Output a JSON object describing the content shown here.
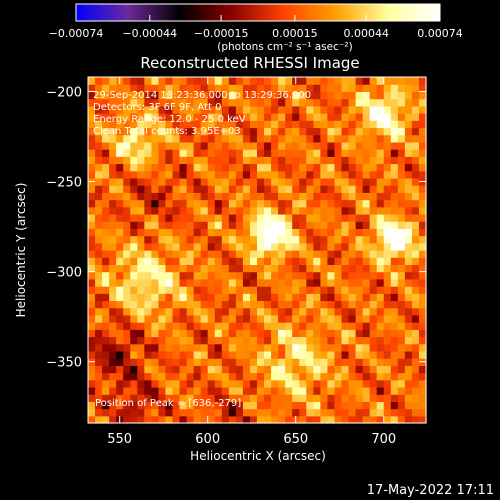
{
  "chart_data": {
    "type": "heatmap",
    "title": "Reconstructed RHESSI Image",
    "xlabel": "Heliocentric X (arcsec)",
    "ylabel": "Heliocentric Y (arcsec)",
    "xlim": [
      532,
      724
    ],
    "ylim": [
      -384,
      -192
    ],
    "x_ticks": [
      550,
      600,
      650,
      700
    ],
    "x_tick_labels": [
      "550",
      "600",
      "650",
      "700"
    ],
    "y_ticks": [
      -200,
      -250,
      -300,
      -350
    ],
    "y_tick_labels": [
      "−200",
      "−250",
      "−300",
      "−350"
    ],
    "colorbar": {
      "range": [
        -0.00074,
        0.00074
      ],
      "ticks": [
        -0.00074,
        -0.00044,
        -0.00015,
        0.00015,
        0.00044,
        0.00074
      ],
      "tick_labels": [
        "−0.00074",
        "−0.00044",
        "−0.00015",
        "0.00015",
        "0.00044",
        "0.00074"
      ],
      "units_label": "(photons cm⁻² s⁻¹ asec⁻²)",
      "colors": [
        "#0000ff",
        "#6a2a9a",
        "#000000",
        "#8a0000",
        "#ff4400",
        "#ffa000",
        "#ffffa0",
        "#ffffff"
      ]
    },
    "annotations": [
      "29-Sep-2014 13:23:36.000 to 13:29:36.000",
      "Detectors: 3F 6F 9F, Att 0",
      "Energy Range: 12.0 - 25.0 keV",
      "Clean     Total counts: 3.95E+03"
    ],
    "peak_label": "Position of Peak = [636,-279]",
    "peak": [
      636,
      -279
    ],
    "sources": [
      {
        "x": 636,
        "y": -279,
        "amp": 1.0,
        "sigma": 8
      },
      {
        "x": 706,
        "y": -282,
        "amp": 0.85,
        "sigma": 8
      },
      {
        "x": 700,
        "y": -212,
        "amp": 0.6,
        "sigma": 10
      },
      {
        "x": 565,
        "y": -305,
        "amp": 0.45,
        "sigma": 14
      },
      {
        "x": 560,
        "y": -228,
        "amp": 0.45,
        "sigma": 10
      },
      {
        "x": 650,
        "y": -350,
        "amp": 0.4,
        "sigma": 14
      }
    ],
    "negative_regions": [
      {
        "x": 548,
        "y": -345,
        "amp": -0.35,
        "sigma": 12
      },
      {
        "x": 560,
        "y": -375,
        "amp": -0.3,
        "sigma": 10
      },
      {
        "x": 570,
        "y": -258,
        "amp": -0.2,
        "sigma": 12
      },
      {
        "x": 612,
        "y": -380,
        "amp": -0.2,
        "sigma": 10
      }
    ]
  },
  "footer": {
    "timestamp": "17-May-2022 17:11"
  }
}
